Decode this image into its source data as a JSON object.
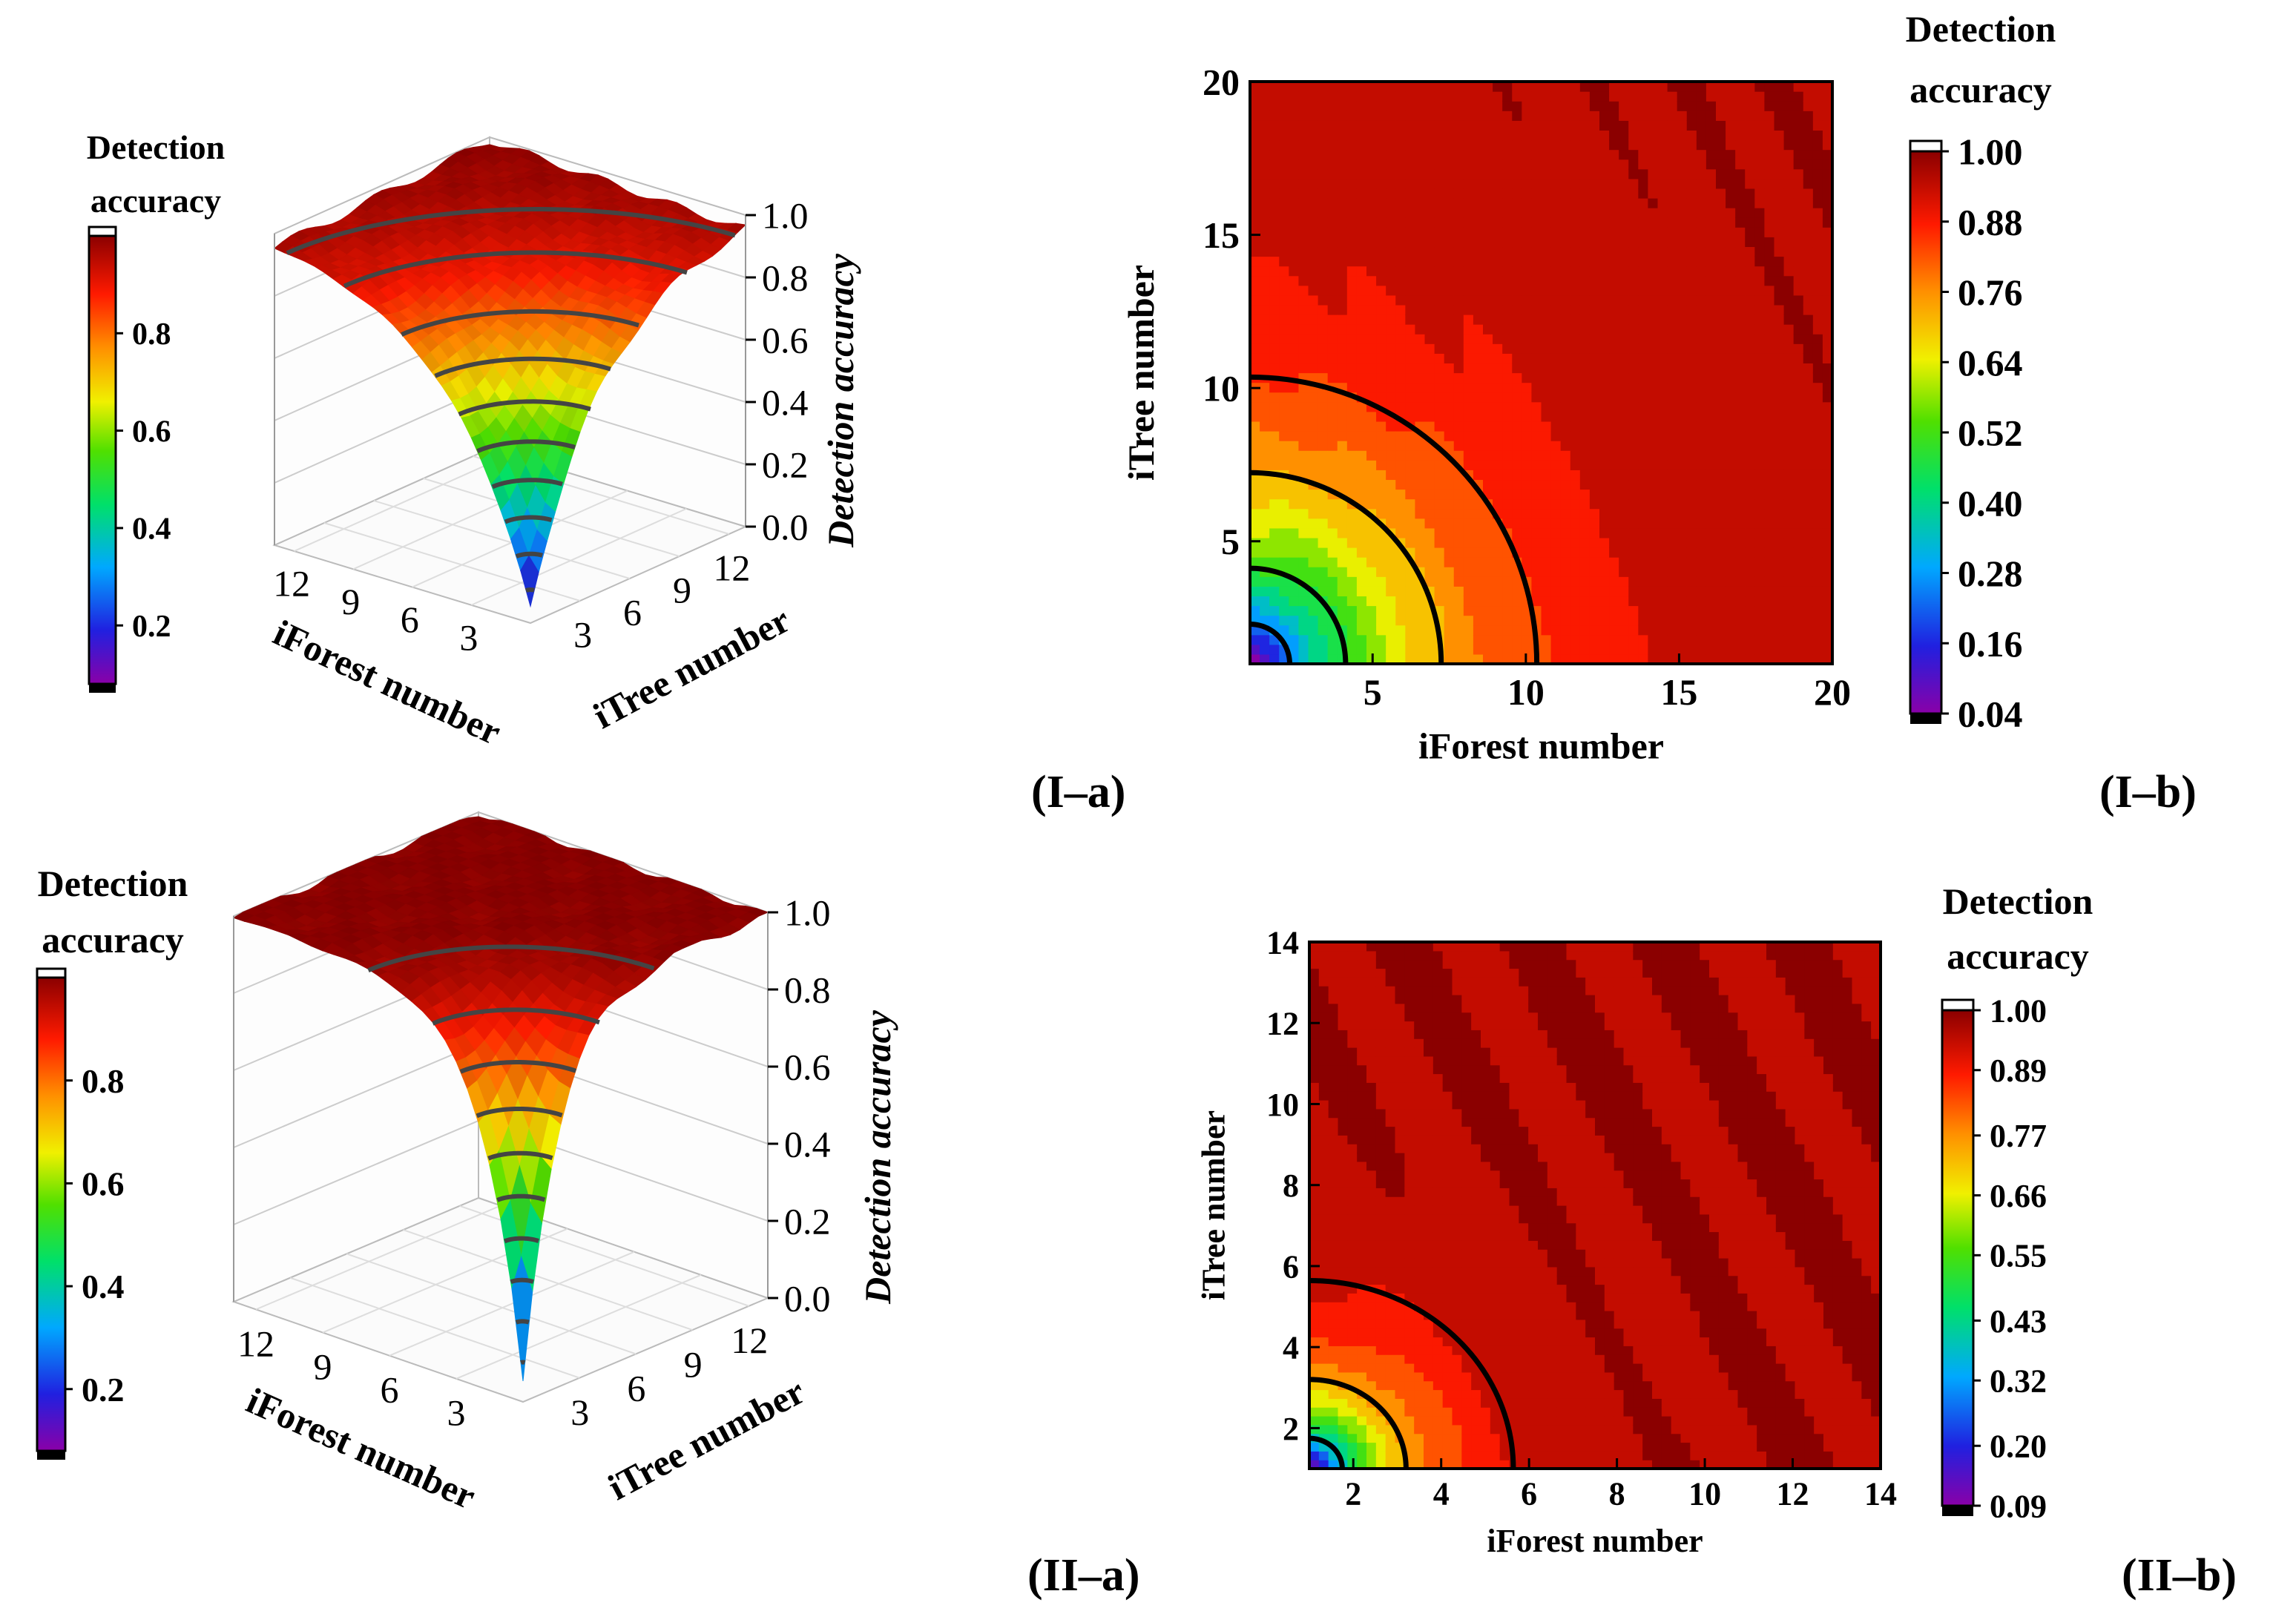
{
  "panels": {
    "Ia": {
      "label": "(I–a)"
    },
    "Ib": {
      "label": "(I–b)"
    },
    "IIa": {
      "label": "(II–a)"
    },
    "IIb": {
      "label": "(II–b)"
    }
  },
  "chart_data": [
    {
      "id": "Ia",
      "type": "surface3d",
      "xlabel": "iForest number",
      "ylabel": "iTree number",
      "zlabel": "Detection accuracy",
      "x_ticks": [
        "3",
        "6",
        "9",
        "12"
      ],
      "y_ticks": [
        "3",
        "6",
        "9",
        "12"
      ],
      "z_ticks": [
        "0.0",
        "0.2",
        "0.4",
        "0.6",
        "0.8",
        "1.0"
      ],
      "zlim": [
        0,
        1
      ],
      "colorbar": {
        "title_line1": "Detection",
        "title_line2": "accuracy",
        "ticks": [
          "0.2",
          "0.4",
          "0.6",
          "0.8"
        ],
        "range": [
          0.08,
          1.0
        ]
      },
      "x_range": [
        1,
        14
      ],
      "y_range": [
        1,
        14
      ],
      "surface_model": {
        "min": 0.05,
        "max": 1.0,
        "scale": 4.2,
        "center_x": 1,
        "center_y": 1
      },
      "contour_levels": [
        0.1,
        0.2,
        0.3,
        0.4,
        0.5,
        0.6,
        0.7,
        0.8,
        0.9,
        0.95
      ]
    },
    {
      "id": "Ib",
      "type": "contour",
      "xlabel": "iForest number",
      "ylabel": "iTree number",
      "x_ticks": [
        5,
        10,
        15,
        20
      ],
      "y_ticks": [
        5,
        10,
        15,
        20
      ],
      "xlim": [
        1,
        20
      ],
      "ylim": [
        1,
        20
      ],
      "colorbar": {
        "title_line1": "Detection",
        "title_line2": "accuracy",
        "ticks": [
          "0.04",
          "0.16",
          "0.28",
          "0.40",
          "0.52",
          "0.64",
          "0.76",
          "0.88",
          "1.00"
        ],
        "range": [
          0.04,
          1.0
        ]
      },
      "contour_levels": [
        0.28,
        0.52,
        0.76,
        0.88
      ],
      "model": {
        "min": 0.04,
        "max": 1.0,
        "scale": 4.5
      }
    },
    {
      "id": "IIa",
      "type": "surface3d",
      "xlabel": "iForest number",
      "ylabel": "iTree number",
      "zlabel": "Detection accuracy",
      "x_ticks": [
        "3",
        "6",
        "9",
        "12"
      ],
      "y_ticks": [
        "3",
        "6",
        "9",
        "12"
      ],
      "z_ticks": [
        "0.0",
        "0.2",
        "0.4",
        "0.6",
        "0.8",
        "1.0"
      ],
      "zlim": [
        0,
        1
      ],
      "colorbar": {
        "title_line1": "Detection",
        "title_line2": "accuracy",
        "ticks": [
          "0.2",
          "0.4",
          "0.6",
          "0.8"
        ],
        "range": [
          0.08,
          1.0
        ]
      },
      "x_range": [
        1,
        14
      ],
      "y_range": [
        1,
        14
      ],
      "surface_model": {
        "min": 0.05,
        "max": 1.0,
        "scale": 1.8,
        "center_x": 1,
        "center_y": 1
      },
      "contour_levels": [
        0.1,
        0.2,
        0.3,
        0.4,
        0.5,
        0.6,
        0.7,
        0.8,
        0.9,
        0.98
      ]
    },
    {
      "id": "IIb",
      "type": "contour",
      "xlabel": "iForest number",
      "ylabel": "iTree number",
      "x_ticks": [
        2,
        4,
        6,
        8,
        10,
        12,
        14
      ],
      "y_ticks": [
        2,
        4,
        6,
        8,
        10,
        12,
        14
      ],
      "xlim": [
        1,
        14
      ],
      "ylim": [
        1,
        14
      ],
      "colorbar": {
        "title_line1": "Detection",
        "title_line2": "accuracy",
        "ticks": [
          "0.09",
          "0.20",
          "0.32",
          "0.43",
          "0.55",
          "0.66",
          "0.77",
          "0.89",
          "1.00"
        ],
        "range": [
          0.09,
          1.0
        ]
      },
      "contour_levels": [
        0.43,
        0.77,
        0.95
      ],
      "model": {
        "min": 0.09,
        "max": 1.0,
        "scale": 1.6
      }
    }
  ]
}
